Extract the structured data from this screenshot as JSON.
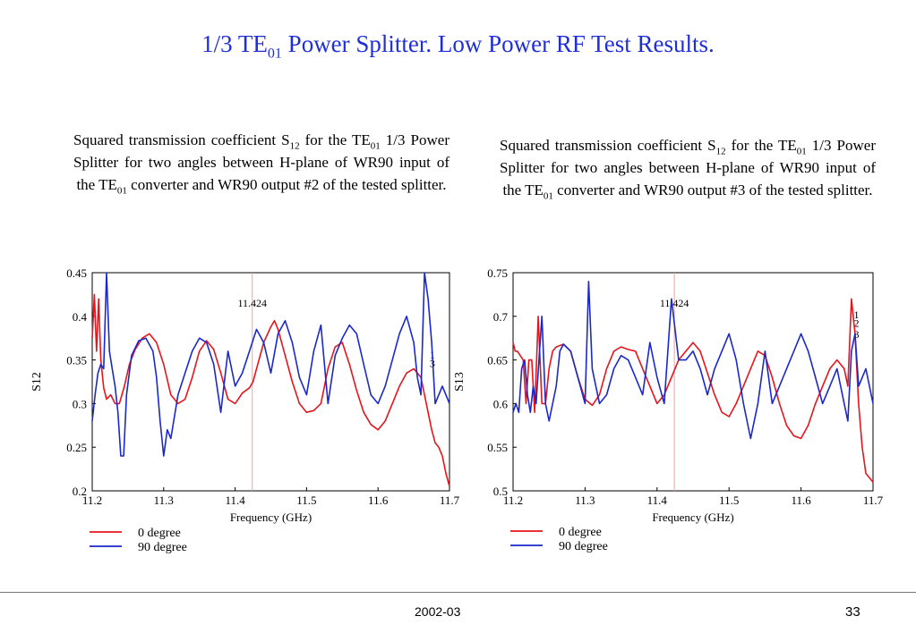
{
  "title": {
    "pre": "1/3 TE",
    "sub": "01",
    "post": " Power Splitter.  Low Power RF Test Results."
  },
  "captions": [
    {
      "part1": "Squared transmission coefficient S",
      "sub1": "12",
      "part2": " for the TE",
      "sub2": "01",
      "part3": " 1/3  Power  Splitter  for  two  angles  between H-plane of WR90 input of the TE",
      "sub3": "01",
      "part4": " converter and WR90 output #2 of the tested splitter."
    },
    {
      "part1": "Squared transmission coefficient S",
      "sub1": "12",
      "part2": " for the TE",
      "sub2": "01",
      "part3": " 1/3  Power  Splitter  for  two  angles  between H-plane of WR90 input of the TE",
      "sub3": "01",
      "part4": " converter and WR90 output #3 of the tested splitter."
    }
  ],
  "footer": {
    "date": "2002-03",
    "page": "33"
  },
  "colors": {
    "title": "#1f2fd8",
    "series0": "#e8141c",
    "series90": "#1a28cc",
    "marker": "#f0a0a0"
  },
  "chart_data": [
    {
      "type": "line",
      "xlabel": "Frequency (GHz)",
      "ylabel": "S12",
      "xlim": [
        11.2,
        11.7
      ],
      "ylim": [
        0.2,
        0.45
      ],
      "xticks": [
        "11.2",
        "11.3",
        "11.4",
        "11.5",
        "11.6",
        "11.7"
      ],
      "yticks": [
        "0.2",
        "0.25",
        "0.3",
        "0.35",
        "0.4",
        "0.45"
      ],
      "annotations": [
        {
          "text": "11.424",
          "x": 11.424
        },
        {
          "text": "1",
          "x": 11.676,
          "y": 0.352
        },
        {
          "text": "3",
          "x": 11.676,
          "y": 0.342
        }
      ],
      "legend": [
        "0 degree",
        "90 degree"
      ],
      "series": [
        {
          "name": "0 degree",
          "x": [
            11.2,
            11.203,
            11.206,
            11.209,
            11.212,
            11.216,
            11.22,
            11.226,
            11.232,
            11.238,
            11.245,
            11.252,
            11.26,
            11.27,
            11.28,
            11.29,
            11.3,
            11.31,
            11.32,
            11.33,
            11.34,
            11.35,
            11.36,
            11.37,
            11.38,
            11.39,
            11.4,
            11.41,
            11.42,
            11.425,
            11.43,
            11.44,
            11.45,
            11.455,
            11.46,
            11.47,
            11.48,
            11.49,
            11.5,
            11.51,
            11.52,
            11.525,
            11.53,
            11.54,
            11.55,
            11.56,
            11.57,
            11.58,
            11.59,
            11.6,
            11.61,
            11.62,
            11.63,
            11.64,
            11.65,
            11.66,
            11.665,
            11.67,
            11.675,
            11.68,
            11.685,
            11.69,
            11.695,
            11.7
          ],
          "y": [
            0.375,
            0.425,
            0.36,
            0.42,
            0.35,
            0.318,
            0.305,
            0.31,
            0.3,
            0.3,
            0.32,
            0.345,
            0.362,
            0.375,
            0.38,
            0.37,
            0.345,
            0.31,
            0.3,
            0.305,
            0.33,
            0.36,
            0.372,
            0.362,
            0.335,
            0.305,
            0.3,
            0.312,
            0.318,
            0.325,
            0.34,
            0.37,
            0.388,
            0.395,
            0.385,
            0.355,
            0.325,
            0.3,
            0.29,
            0.292,
            0.3,
            0.32,
            0.34,
            0.365,
            0.37,
            0.345,
            0.315,
            0.29,
            0.276,
            0.27,
            0.28,
            0.3,
            0.32,
            0.335,
            0.34,
            0.33,
            0.31,
            0.29,
            0.27,
            0.255,
            0.25,
            0.24,
            0.22,
            0.205
          ]
        },
        {
          "name": "90 degree",
          "x": [
            11.2,
            11.204,
            11.208,
            11.212,
            11.216,
            11.22,
            11.224,
            11.228,
            11.232,
            11.236,
            11.24,
            11.244,
            11.248,
            11.255,
            11.265,
            11.275,
            11.285,
            11.29,
            11.295,
            11.3,
            11.305,
            11.31,
            11.32,
            11.33,
            11.34,
            11.35,
            11.36,
            11.37,
            11.38,
            11.39,
            11.4,
            11.41,
            11.42,
            11.43,
            11.44,
            11.45,
            11.46,
            11.47,
            11.48,
            11.49,
            11.5,
            11.51,
            11.52,
            11.53,
            11.54,
            11.55,
            11.56,
            11.57,
            11.58,
            11.59,
            11.6,
            11.61,
            11.62,
            11.63,
            11.64,
            11.65,
            11.655,
            11.66,
            11.665,
            11.67,
            11.675,
            11.68,
            11.69,
            11.7
          ],
          "y": [
            0.28,
            0.31,
            0.335,
            0.345,
            0.34,
            0.45,
            0.36,
            0.34,
            0.32,
            0.29,
            0.24,
            0.24,
            0.31,
            0.355,
            0.372,
            0.375,
            0.36,
            0.33,
            0.28,
            0.24,
            0.27,
            0.26,
            0.31,
            0.335,
            0.36,
            0.375,
            0.37,
            0.345,
            0.29,
            0.36,
            0.32,
            0.335,
            0.36,
            0.385,
            0.37,
            0.335,
            0.38,
            0.395,
            0.37,
            0.33,
            0.31,
            0.36,
            0.39,
            0.3,
            0.355,
            0.375,
            0.39,
            0.38,
            0.345,
            0.31,
            0.3,
            0.32,
            0.35,
            0.38,
            0.4,
            0.37,
            0.33,
            0.31,
            0.45,
            0.42,
            0.37,
            0.3,
            0.32,
            0.3
          ]
        }
      ]
    },
    {
      "type": "line",
      "xlabel": "Frequency (GHz)",
      "ylabel": "S13",
      "xlim": [
        11.2,
        11.7
      ],
      "ylim": [
        0.5,
        0.75
      ],
      "xticks": [
        "11.2",
        "11.3",
        "11.4",
        "11.5",
        "11.6",
        "11.7"
      ],
      "yticks": [
        "0.5",
        "0.55",
        "0.6",
        "0.65",
        "0.7",
        "0.75"
      ],
      "annotations": [
        {
          "text": "11.424",
          "x": 11.424
        },
        {
          "text": "1",
          "x": 11.677,
          "y": 0.698
        },
        {
          "text": "2",
          "x": 11.677,
          "y": 0.688
        },
        {
          "text": "3",
          "x": 11.677,
          "y": 0.675
        }
      ],
      "legend": [
        "0 degree",
        "90 degree"
      ],
      "series": [
        {
          "name": "0 degree",
          "x": [
            11.2,
            11.203,
            11.206,
            11.21,
            11.214,
            11.218,
            11.222,
            11.226,
            11.23,
            11.235,
            11.24,
            11.245,
            11.25,
            11.255,
            11.26,
            11.27,
            11.28,
            11.29,
            11.3,
            11.31,
            11.32,
            11.33,
            11.34,
            11.35,
            11.36,
            11.37,
            11.38,
            11.39,
            11.4,
            11.41,
            11.42,
            11.43,
            11.44,
            11.45,
            11.46,
            11.47,
            11.48,
            11.49,
            11.5,
            11.51,
            11.52,
            11.53,
            11.54,
            11.55,
            11.56,
            11.57,
            11.58,
            11.59,
            11.6,
            11.61,
            11.62,
            11.63,
            11.64,
            11.65,
            11.66,
            11.665,
            11.67,
            11.675,
            11.68,
            11.685,
            11.69,
            11.7
          ],
          "y": [
            0.67,
            0.66,
            0.66,
            0.655,
            0.65,
            0.6,
            0.65,
            0.65,
            0.59,
            0.7,
            0.6,
            0.6,
            0.64,
            0.66,
            0.665,
            0.668,
            0.66,
            0.63,
            0.605,
            0.598,
            0.61,
            0.64,
            0.66,
            0.665,
            0.662,
            0.66,
            0.64,
            0.62,
            0.6,
            0.61,
            0.63,
            0.65,
            0.66,
            0.67,
            0.66,
            0.635,
            0.61,
            0.59,
            0.585,
            0.6,
            0.62,
            0.64,
            0.66,
            0.655,
            0.63,
            0.6,
            0.575,
            0.563,
            0.56,
            0.575,
            0.6,
            0.62,
            0.64,
            0.65,
            0.64,
            0.62,
            0.72,
            0.68,
            0.6,
            0.55,
            0.52,
            0.51
          ]
        },
        {
          "name": "90 degree",
          "x": [
            11.2,
            11.204,
            11.208,
            11.212,
            11.216,
            11.22,
            11.224,
            11.228,
            11.232,
            11.236,
            11.24,
            11.245,
            11.25,
            11.255,
            11.26,
            11.265,
            11.27,
            11.28,
            11.29,
            11.3,
            11.305,
            11.31,
            11.32,
            11.33,
            11.34,
            11.35,
            11.36,
            11.37,
            11.38,
            11.39,
            11.4,
            11.41,
            11.42,
            11.43,
            11.44,
            11.45,
            11.46,
            11.47,
            11.48,
            11.49,
            11.5,
            11.51,
            11.52,
            11.53,
            11.54,
            11.55,
            11.56,
            11.57,
            11.58,
            11.59,
            11.6,
            11.61,
            11.62,
            11.63,
            11.64,
            11.65,
            11.66,
            11.665,
            11.67,
            11.675,
            11.68,
            11.69,
            11.7
          ],
          "y": [
            0.59,
            0.6,
            0.59,
            0.64,
            0.65,
            0.61,
            0.59,
            0.62,
            0.6,
            0.65,
            0.7,
            0.6,
            0.58,
            0.6,
            0.62,
            0.66,
            0.668,
            0.66,
            0.63,
            0.6,
            0.74,
            0.64,
            0.6,
            0.61,
            0.64,
            0.655,
            0.65,
            0.63,
            0.61,
            0.67,
            0.63,
            0.6,
            0.72,
            0.65,
            0.65,
            0.66,
            0.64,
            0.61,
            0.64,
            0.66,
            0.68,
            0.65,
            0.6,
            0.56,
            0.6,
            0.66,
            0.6,
            0.62,
            0.64,
            0.66,
            0.68,
            0.66,
            0.63,
            0.6,
            0.62,
            0.64,
            0.6,
            0.58,
            0.66,
            0.68,
            0.62,
            0.64,
            0.6
          ]
        }
      ]
    }
  ]
}
